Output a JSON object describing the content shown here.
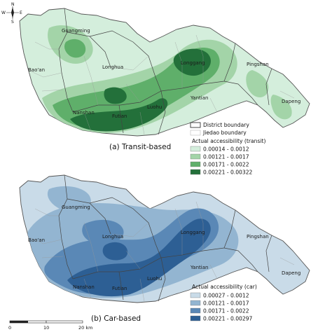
{
  "map_a": {
    "caption": "(a) Transit-based",
    "districts": [
      "Guangming",
      "Bao'an",
      "Longhua",
      "Longgang",
      "Pingshan",
      "Nanshan",
      "Futian",
      "Luohu",
      "Yantian",
      "Dapeng"
    ],
    "legend": {
      "boundary_district": "District boundary",
      "boundary_jiedao": "Jiedao boundary",
      "title": "Actual accessibility (transit)",
      "classes": [
        "0.00014 - 0.0012",
        "0.00121 - 0.0017",
        "0.00171 - 0.0022",
        "0.00221 - 0.00322"
      ],
      "colors": [
        "#d4eedc",
        "#a3d4a8",
        "#5faf6a",
        "#23703a"
      ]
    }
  },
  "map_b": {
    "caption": "(b) Car-based",
    "districts": [
      "Guangming",
      "Bao'an",
      "Longhua",
      "Longgang",
      "Pingshan",
      "Nanshan",
      "Futian",
      "Luohu",
      "Yantian",
      "Dapeng"
    ],
    "legend": {
      "title": "Actual accessibility (car)",
      "classes": [
        "0.00027 - 0.0012",
        "0.00121 - 0.0017",
        "0.00171 - 0.0022",
        "0.00221 - 0.00297"
      ],
      "colors": [
        "#c9dbe8",
        "#93b5d1",
        "#5a88b6",
        "#2d5f94"
      ]
    }
  },
  "compass": {
    "n": "N",
    "s": "S",
    "e": "E",
    "w": "W"
  },
  "scale": {
    "ticks": [
      "0",
      "10",
      "20 km"
    ]
  }
}
